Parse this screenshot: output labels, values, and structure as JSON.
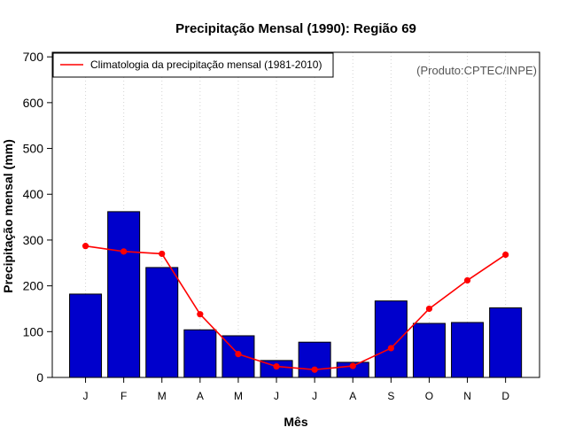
{
  "chart_data": {
    "type": "bar",
    "title": "Precipitação Mensal (1990): Região 69",
    "xlabel": "Mês",
    "ylabel": "Precipitação mensal (mm)",
    "ylim": [
      0,
      710
    ],
    "yticks": [
      0,
      100,
      200,
      300,
      400,
      500,
      600,
      700
    ],
    "categories": [
      "J",
      "F",
      "M",
      "A",
      "M",
      "J",
      "J",
      "A",
      "S",
      "O",
      "N",
      "D"
    ],
    "series": [
      {
        "name": "Precipitação mensal (1990)",
        "type": "bar",
        "color": "#0000cc",
        "values": [
          182,
          362,
          240,
          104,
          91,
          37,
          77,
          33,
          167,
          118,
          120,
          152
        ]
      },
      {
        "name": "Climatologia da precipitação mensal (1981-2010)",
        "type": "line",
        "color": "#ff0000",
        "values": [
          287,
          275,
          270,
          138,
          51,
          24,
          17,
          25,
          64,
          150,
          212,
          268
        ]
      }
    ],
    "legend": {
      "position": "top-left",
      "entries": [
        "Climatologia da precipitação mensal (1981-2010)"
      ]
    },
    "annotation": "(Produto:CPTEC/INPE)",
    "grid": "vertical dotted"
  }
}
